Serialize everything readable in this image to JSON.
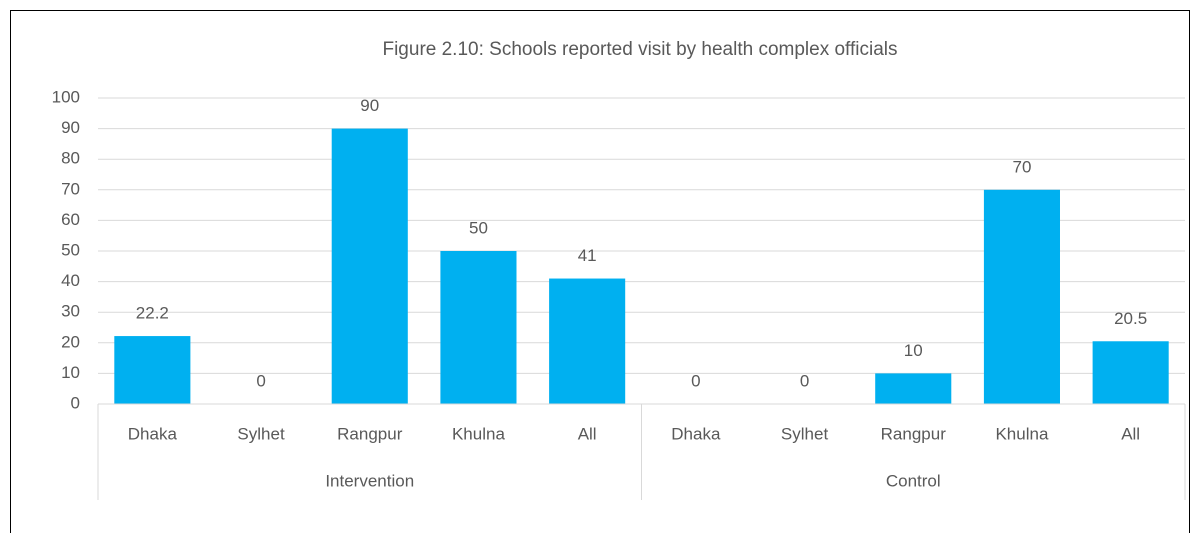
{
  "chart_data": {
    "type": "bar",
    "title": "Figure 2.10: Schools reported visit by health complex officials",
    "categories": [
      "Dhaka",
      "Sylhet",
      "Rangpur",
      "Khulna",
      "All",
      "Dhaka",
      "Sylhet",
      "Rangpur",
      "Khulna",
      "All"
    ],
    "group_labels": [
      "Intervention",
      "Control"
    ],
    "values": [
      22.2,
      0,
      90,
      50,
      41,
      0,
      0,
      10,
      70,
      20.5
    ],
    "color": "#00b0f0",
    "ylim": [
      0,
      100
    ],
    "yticks": [
      0,
      10,
      20,
      30,
      40,
      50,
      60,
      70,
      80,
      90,
      100
    ],
    "grid": true
  }
}
